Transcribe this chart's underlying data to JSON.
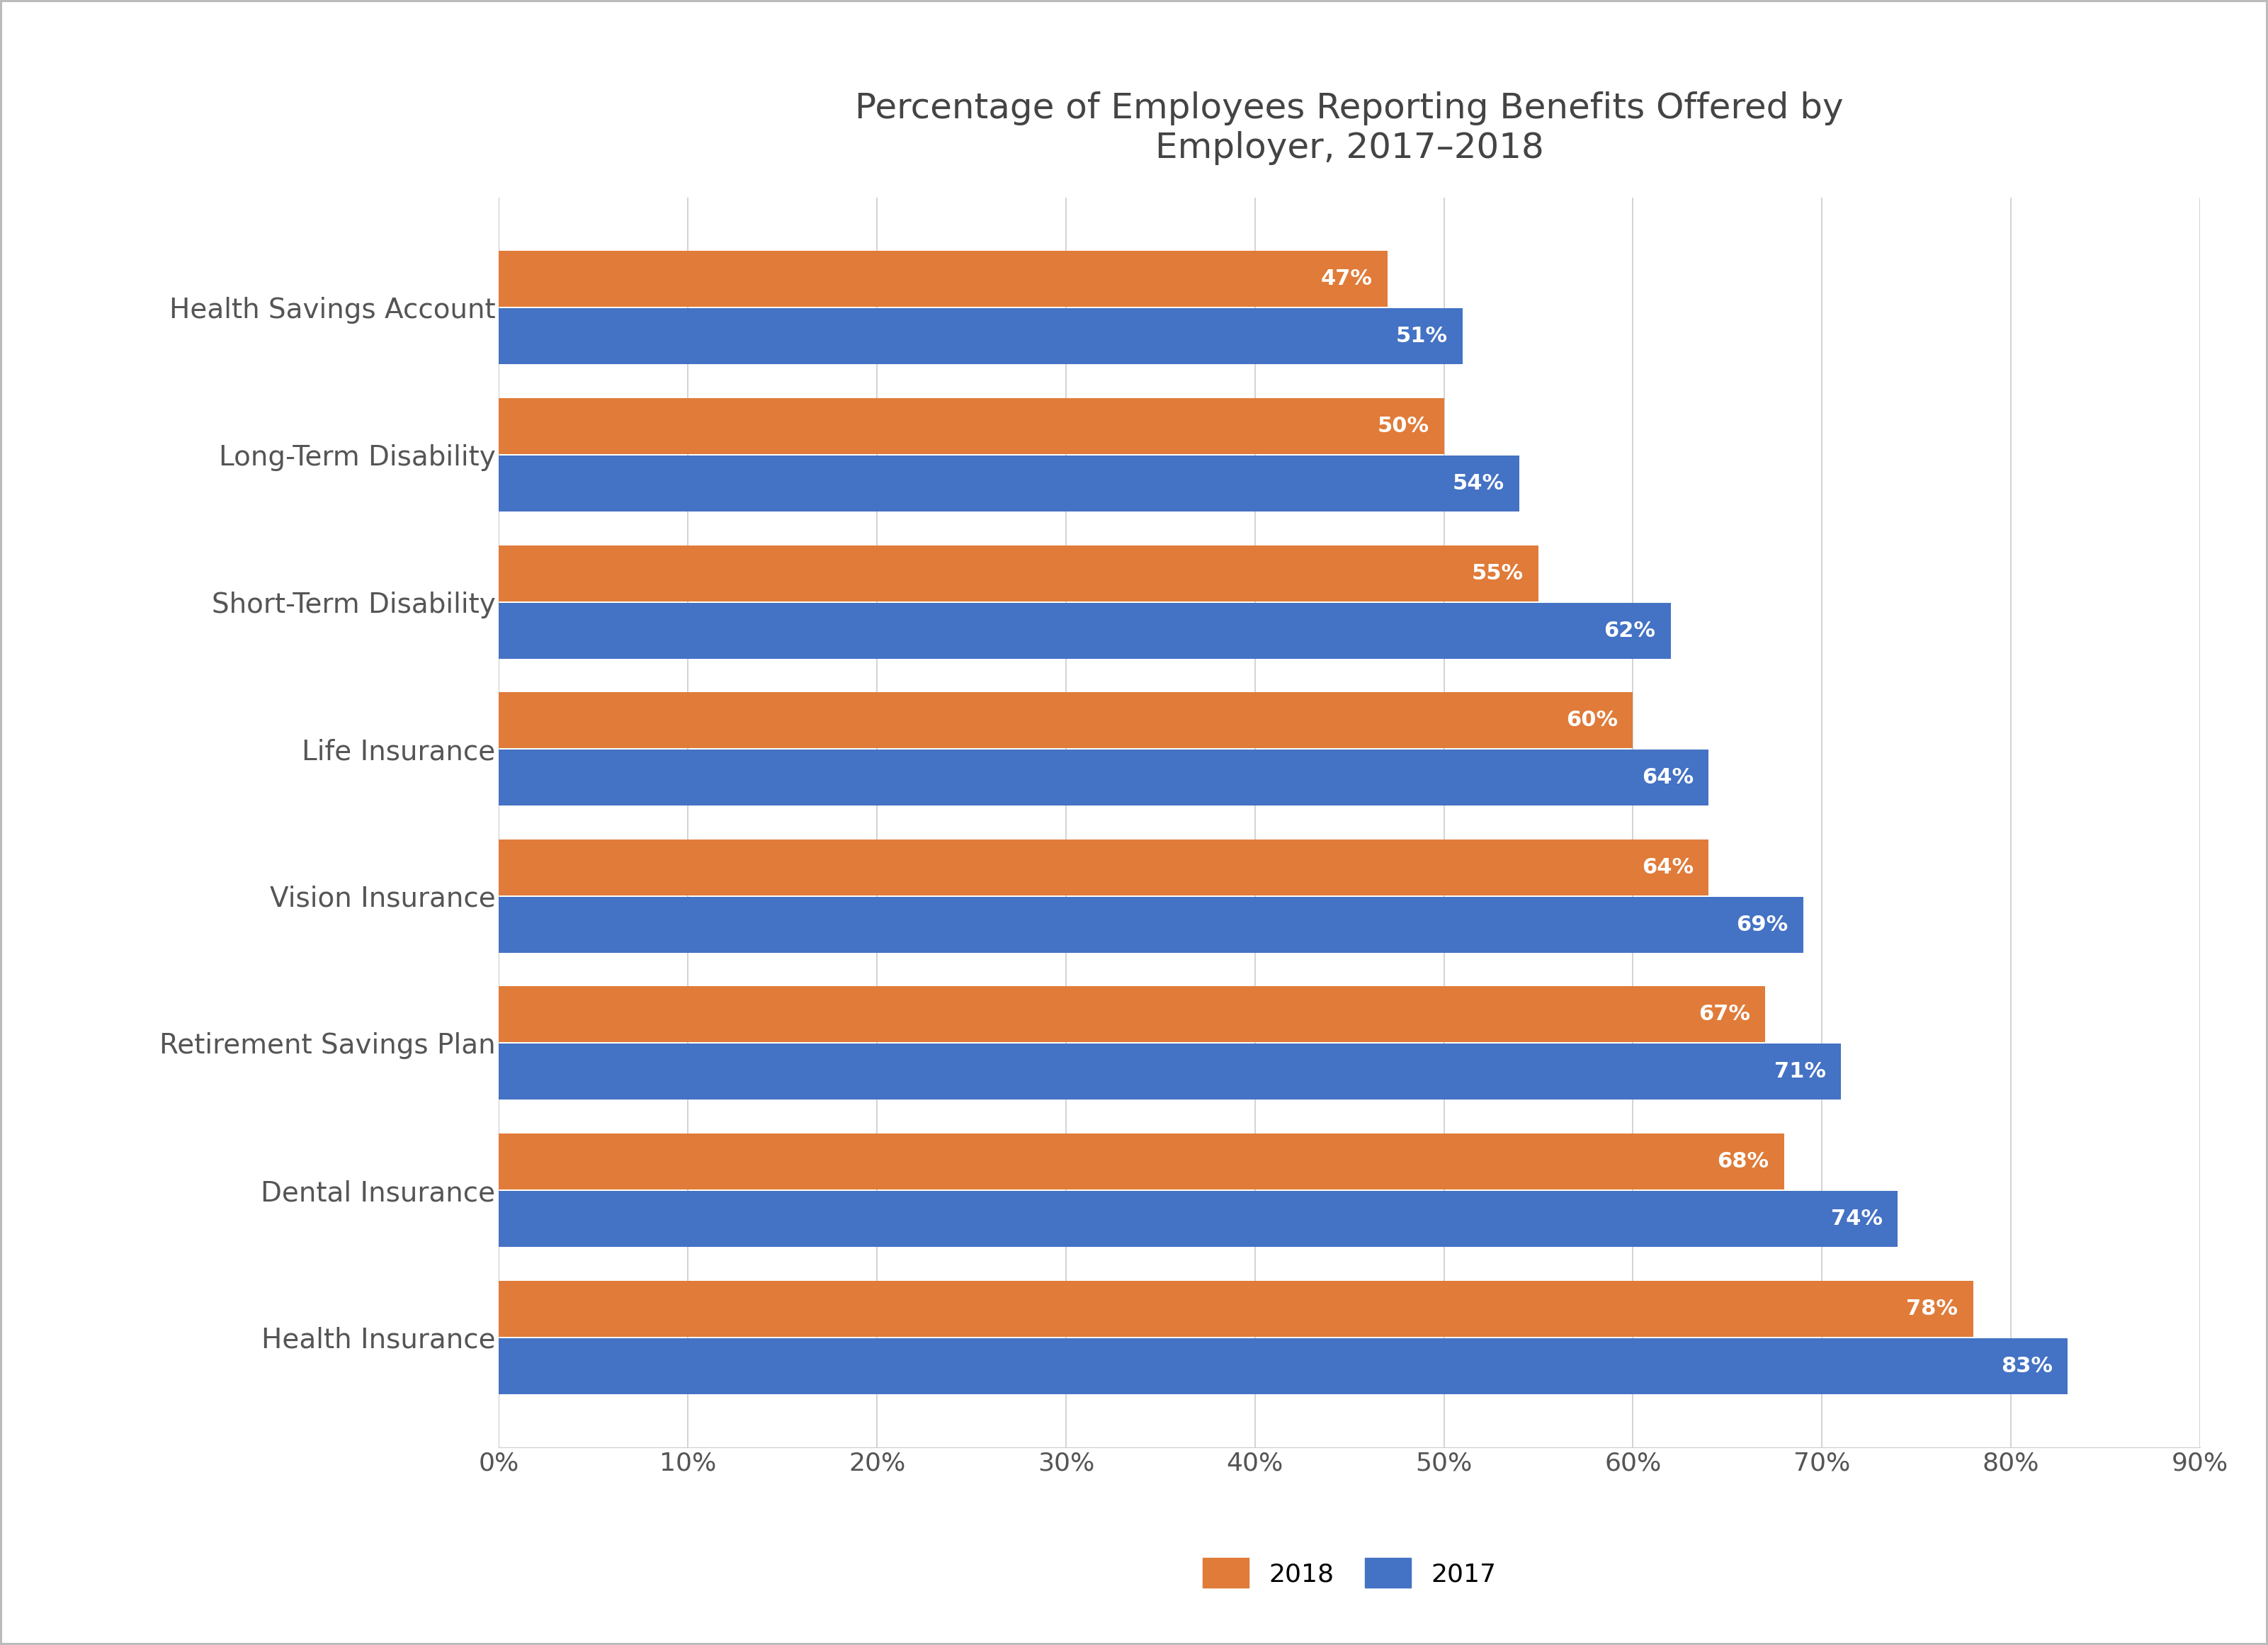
{
  "title": "Percentage of Employees Reporting Benefits Offered by\nEmployer, 2017–2018",
  "categories": [
    "Health Insurance",
    "Dental Insurance",
    "Retirement Savings Plan",
    "Vision Insurance",
    "Life Insurance",
    "Short-Term Disability",
    "Long-Term Disability",
    "Health Savings Account"
  ],
  "values_2018": [
    78,
    68,
    67,
    64,
    60,
    55,
    50,
    47
  ],
  "values_2017": [
    83,
    74,
    71,
    69,
    64,
    62,
    54,
    51
  ],
  "color_2018": "#E07B39",
  "color_2017": "#4472C4",
  "label_color": "#FFFFFF",
  "background_color": "#FFFFFF",
  "border_color": "#BBBBBB",
  "xlim": [
    0,
    90
  ],
  "xtick_values": [
    0,
    10,
    20,
    30,
    40,
    50,
    60,
    70,
    80,
    90
  ],
  "xtick_labels": [
    "0%",
    "10%",
    "20%",
    "30%",
    "40%",
    "50%",
    "60%",
    "70%",
    "80%",
    "90%"
  ],
  "title_fontsize": 36,
  "tick_fontsize": 26,
  "category_fontsize": 28,
  "legend_fontsize": 26,
  "bar_label_fontsize": 22,
  "legend_2018": "2018",
  "legend_2017": "2017",
  "grid_color": "#CCCCCC",
  "bar_height": 0.38,
  "bar_gap": 0.01
}
